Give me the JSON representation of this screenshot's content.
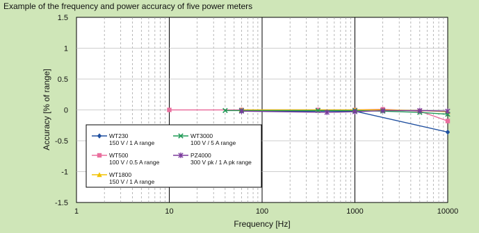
{
  "caption": "Example of the frequency and power accuracy of five power meters",
  "chart_data": {
    "type": "line",
    "title": "",
    "xlabel": "Frequency [Hz]",
    "ylabel": "Accuracy [% of range]",
    "xscale": "log",
    "xlim": [
      1,
      10000
    ],
    "ylim": [
      -1.5,
      1.5
    ],
    "xticks": [
      1,
      10,
      100,
      1000,
      10000
    ],
    "xtick_labels": [
      "1",
      "10",
      "100",
      "1000",
      "10000"
    ],
    "yticks": [
      1.5,
      1,
      0.5,
      0,
      -0.5,
      -1,
      -1.5
    ],
    "ytick_labels": [
      "1.5",
      "1",
      "0.5",
      "0",
      "-0.5",
      "-1",
      "-1.5"
    ],
    "grid": true,
    "legend_placement": "lower-left",
    "series": [
      {
        "name": "WT230",
        "label2": "150 V / 1 A range",
        "color": "#1f4f9f",
        "marker": "diamond",
        "x": [
          60,
          1000,
          10000
        ],
        "y": [
          -0.02,
          -0.02,
          -0.36
        ]
      },
      {
        "name": "WT500",
        "label2": "100 V / 0.5 A range",
        "color": "#ea6f9e",
        "marker": "square",
        "x": [
          10,
          60,
          400,
          1000,
          2000,
          5000,
          10000
        ],
        "y": [
          0.0,
          0.0,
          0.0,
          0.0,
          0.01,
          -0.02,
          -0.18
        ]
      },
      {
        "name": "WT1800",
        "label2": "150 V / 1 A range",
        "color": "#f2c200",
        "marker": "triangle",
        "x": [
          60,
          1000,
          2000,
          5000,
          10000
        ],
        "y": [
          0.0,
          0.0,
          0.0,
          -0.01,
          -0.03
        ]
      },
      {
        "name": "WT3000",
        "label2": "100 V / 5 A range",
        "color": "#1f9a55",
        "marker": "x",
        "x": [
          40,
          60,
          400,
          1000,
          2000,
          5000,
          10000
        ],
        "y": [
          -0.01,
          -0.01,
          -0.01,
          -0.01,
          -0.02,
          -0.04,
          -0.07
        ]
      },
      {
        "name": "PZ4000",
        "label2": "300 V pk / 1 A pk range",
        "color": "#7a3a9c",
        "marker": "star",
        "x": [
          60,
          500,
          1000,
          2000,
          5000,
          10000
        ],
        "y": [
          -0.02,
          -0.04,
          -0.03,
          -0.01,
          -0.01,
          -0.02
        ]
      }
    ]
  }
}
